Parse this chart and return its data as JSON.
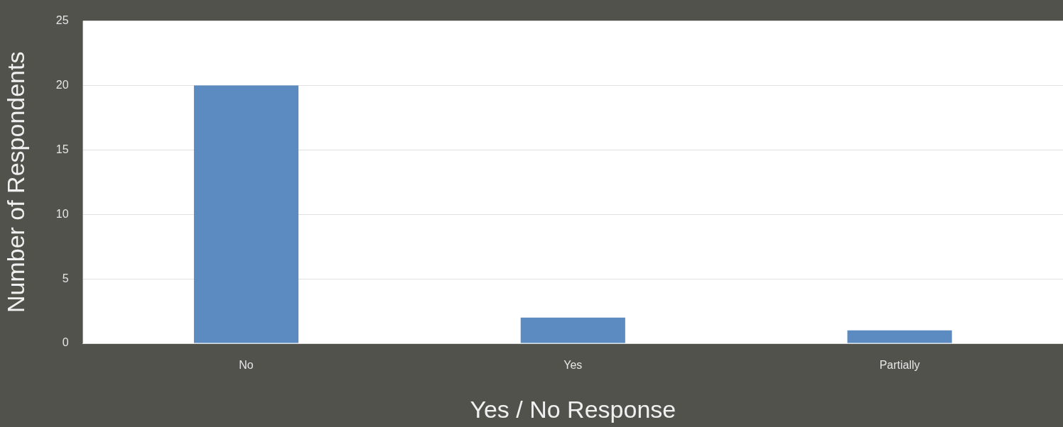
{
  "chart_data": {
    "type": "bar",
    "xlabel": "Yes / No Response",
    "ylabel": "Number of Respondents",
    "categories": [
      "No",
      "Yes",
      "Partially"
    ],
    "values": [
      20,
      2,
      1
    ],
    "color": "#5b8bc0",
    "ylim": [
      0,
      25
    ],
    "yticks": [
      0,
      5,
      10,
      15,
      20,
      25
    ],
    "grid": "y",
    "legend": false
  }
}
